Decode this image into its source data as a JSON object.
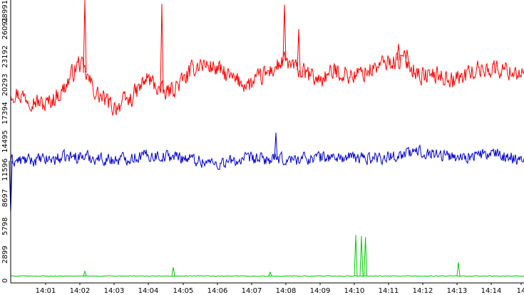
{
  "chart_data": {
    "type": "line",
    "title": "",
    "xlabel": "",
    "ylabel": "",
    "grid": false,
    "legend": "none",
    "x_domain": [
      "14:00:00",
      "14:15:00"
    ],
    "ylim": [
      0,
      28991
    ],
    "x_ticks": [
      "14:01",
      "14:02",
      "14:03",
      "14:04",
      "14:05",
      "14:06",
      "14:07",
      "14:08",
      "14:09",
      "14:10",
      "14:11",
      "14:12",
      "14:13",
      "14:14",
      "14"
    ],
    "y_ticks": [
      "0",
      "2899",
      "5798",
      "8697",
      "11596",
      "14495",
      "17394",
      "20293",
      "23192",
      "26091",
      "28991"
    ],
    "colors": {
      "background": "#ffffff",
      "axis": "#000000"
    },
    "series": [
      {
        "color": "#ff0000",
        "baseline": 21500,
        "noise": 1300,
        "values": [
          {
            "t": "14:00:00",
            "v": 19600
          },
          {
            "t": "14:00:30",
            "v": 19000
          },
          {
            "t": "14:01:00",
            "v": 18200
          },
          {
            "t": "14:01:30",
            "v": 19600
          },
          {
            "t": "14:02:00",
            "v": 22600
          },
          {
            "t": "14:02:30",
            "v": 19400
          },
          {
            "t": "14:03:00",
            "v": 18000
          },
          {
            "t": "14:03:30",
            "v": 18800
          },
          {
            "t": "14:04:00",
            "v": 21000
          },
          {
            "t": "14:04:30",
            "v": 19300
          },
          {
            "t": "14:05:00",
            "v": 20600
          },
          {
            "t": "14:05:30",
            "v": 22500
          },
          {
            "t": "14:06:00",
            "v": 22000
          },
          {
            "t": "14:06:30",
            "v": 20800
          },
          {
            "t": "14:07:00",
            "v": 20300
          },
          {
            "t": "14:07:30",
            "v": 21500
          },
          {
            "t": "14:08:00",
            "v": 22700
          },
          {
            "t": "14:08:30",
            "v": 21600
          },
          {
            "t": "14:09:00",
            "v": 20800
          },
          {
            "t": "14:09:30",
            "v": 21700
          },
          {
            "t": "14:10:00",
            "v": 21200
          },
          {
            "t": "14:10:30",
            "v": 21800
          },
          {
            "t": "14:11:00",
            "v": 22600
          },
          {
            "t": "14:11:30",
            "v": 22900
          },
          {
            "t": "14:12:00",
            "v": 21200
          },
          {
            "t": "14:12:30",
            "v": 21300
          },
          {
            "t": "14:13:00",
            "v": 20800
          },
          {
            "t": "14:13:30",
            "v": 21700
          },
          {
            "t": "14:14:00",
            "v": 22000
          },
          {
            "t": "14:14:30",
            "v": 21800
          },
          {
            "t": "14:15:00",
            "v": 21500
          }
        ],
        "spikes": [
          {
            "t": "14:02:10",
            "v": 28991
          },
          {
            "t": "14:04:25",
            "v": 28600
          },
          {
            "t": "14:08:00",
            "v": 28500
          },
          {
            "t": "14:08:25",
            "v": 26000
          },
          {
            "t": "14:11:20",
            "v": 24500
          },
          {
            "t": "14:11:35",
            "v": 23900
          }
        ]
      },
      {
        "color": "#0000cc",
        "baseline": 12800,
        "noise": 900,
        "values": [
          {
            "t": "14:00:00",
            "v": 12500
          },
          {
            "t": "14:01:00",
            "v": 12600
          },
          {
            "t": "14:02:00",
            "v": 13000
          },
          {
            "t": "14:03:00",
            "v": 12600
          },
          {
            "t": "14:04:00",
            "v": 13100
          },
          {
            "t": "14:05:00",
            "v": 12900
          },
          {
            "t": "14:06:00",
            "v": 12200
          },
          {
            "t": "14:07:00",
            "v": 12700
          },
          {
            "t": "14:08:00",
            "v": 12600
          },
          {
            "t": "14:09:00",
            "v": 12900
          },
          {
            "t": "14:10:00",
            "v": 12800
          },
          {
            "t": "14:11:00",
            "v": 12900
          },
          {
            "t": "14:12:00",
            "v": 13500
          },
          {
            "t": "14:13:00",
            "v": 12900
          },
          {
            "t": "14:14:00",
            "v": 13200
          },
          {
            "t": "14:15:00",
            "v": 12700
          }
        ],
        "spikes": [
          {
            "t": "14:00:00",
            "v": 7100
          },
          {
            "t": "14:07:45",
            "v": 15400
          }
        ]
      },
      {
        "color": "#00cc00",
        "baseline": 700,
        "noise": 60,
        "values": [
          {
            "t": "14:00:00",
            "v": 700
          },
          {
            "t": "14:15:00",
            "v": 700
          }
        ],
        "spikes": [
          {
            "t": "14:02:10",
            "v": 1200
          },
          {
            "t": "14:04:45",
            "v": 1600
          },
          {
            "t": "14:07:35",
            "v": 1100
          },
          {
            "t": "14:10:05",
            "v": 4900
          },
          {
            "t": "14:10:15",
            "v": 4800
          },
          {
            "t": "14:10:22",
            "v": 4700
          },
          {
            "t": "14:13:05",
            "v": 2100
          }
        ]
      }
    ]
  }
}
